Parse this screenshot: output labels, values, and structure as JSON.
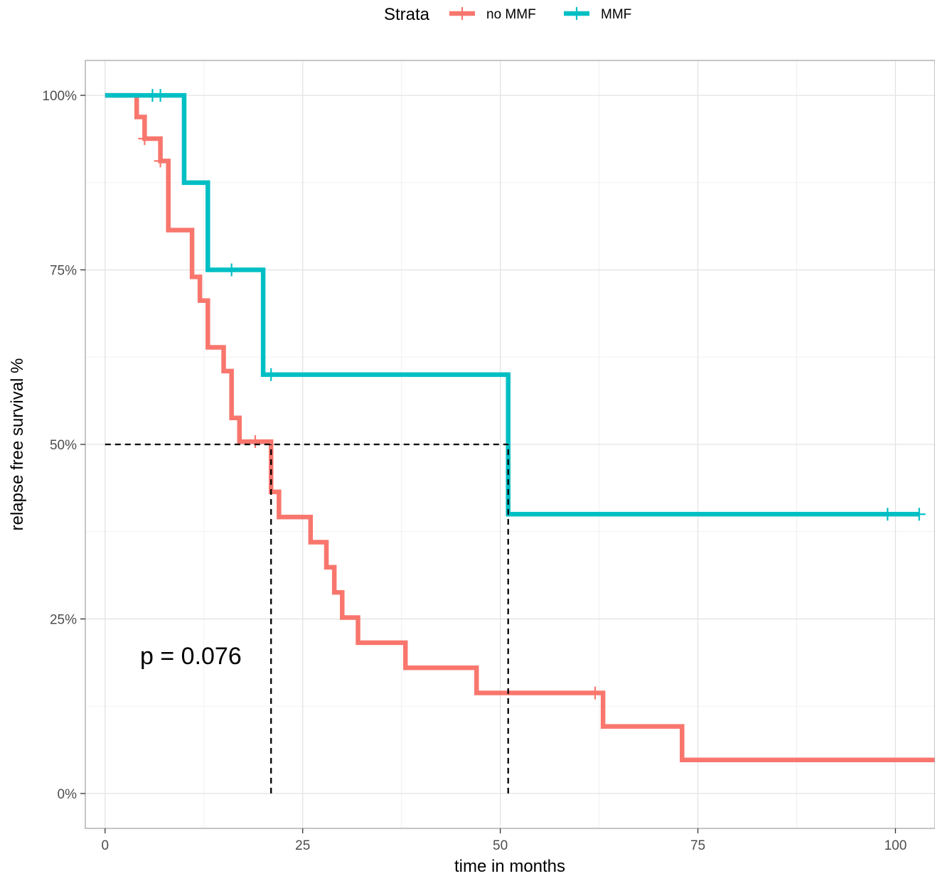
{
  "chart_data": {
    "type": "line",
    "xlabel": "time in months",
    "ylabel": "relapse free survival %",
    "xlim": [
      -2.5,
      105
    ],
    "ylim": [
      -0.05,
      1.05
    ],
    "x_ticks": [
      {
        "value": 0,
        "label": "0"
      },
      {
        "value": 25,
        "label": "25"
      },
      {
        "value": 50,
        "label": "50"
      },
      {
        "value": 75,
        "label": "75"
      },
      {
        "value": 100,
        "label": "100"
      }
    ],
    "y_ticks": [
      {
        "value": 0,
        "label": "0%"
      },
      {
        "value": 0.25,
        "label": "25%"
      },
      {
        "value": 0.5,
        "label": "50%"
      },
      {
        "value": 0.75,
        "label": "75%"
      },
      {
        "value": 1.0,
        "label": "100%"
      }
    ],
    "grid": true,
    "legend": {
      "title": "Strata",
      "position": "top"
    },
    "annotation": "p = 0.076",
    "median_lines": [
      {
        "y": 0.5,
        "x_from": 0,
        "x_to": 51
      },
      {
        "x": 21,
        "y_from": 0,
        "y_to": 0.5
      },
      {
        "x": 51,
        "y_from": 0,
        "y_to": 0.5
      }
    ],
    "series": [
      {
        "name": "no MMF",
        "color": "#F8766D",
        "steps": [
          [
            0,
            1.0
          ],
          [
            4,
            0.969
          ],
          [
            5,
            0.938
          ],
          [
            7,
            0.906
          ],
          [
            8,
            0.807
          ],
          [
            11,
            0.74
          ],
          [
            12,
            0.706
          ],
          [
            13,
            0.639
          ],
          [
            15,
            0.605
          ],
          [
            16,
            0.538
          ],
          [
            17,
            0.504
          ],
          [
            21,
            0.432
          ],
          [
            22,
            0.396
          ],
          [
            26,
            0.36
          ],
          [
            28,
            0.324
          ],
          [
            29,
            0.288
          ],
          [
            30,
            0.252
          ],
          [
            32,
            0.216
          ],
          [
            38,
            0.18
          ],
          [
            47,
            0.144
          ],
          [
            63,
            0.096
          ],
          [
            73,
            0.048
          ],
          [
            105,
            0.048
          ]
        ],
        "censored": [
          [
            5,
            0.938
          ],
          [
            7,
            0.906
          ],
          [
            19,
            0.504
          ],
          [
            62,
            0.144
          ]
        ]
      },
      {
        "name": "MMF",
        "color": "#00BFC4",
        "steps": [
          [
            0,
            1.0
          ],
          [
            10,
            0.875
          ],
          [
            13,
            0.75
          ],
          [
            20,
            0.6
          ],
          [
            51,
            0.4
          ],
          [
            103,
            0.4
          ]
        ],
        "censored": [
          [
            6,
            1.0
          ],
          [
            7,
            1.0
          ],
          [
            16,
            0.75
          ],
          [
            21,
            0.6
          ],
          [
            99,
            0.4
          ],
          [
            103,
            0.4
          ]
        ]
      }
    ]
  }
}
